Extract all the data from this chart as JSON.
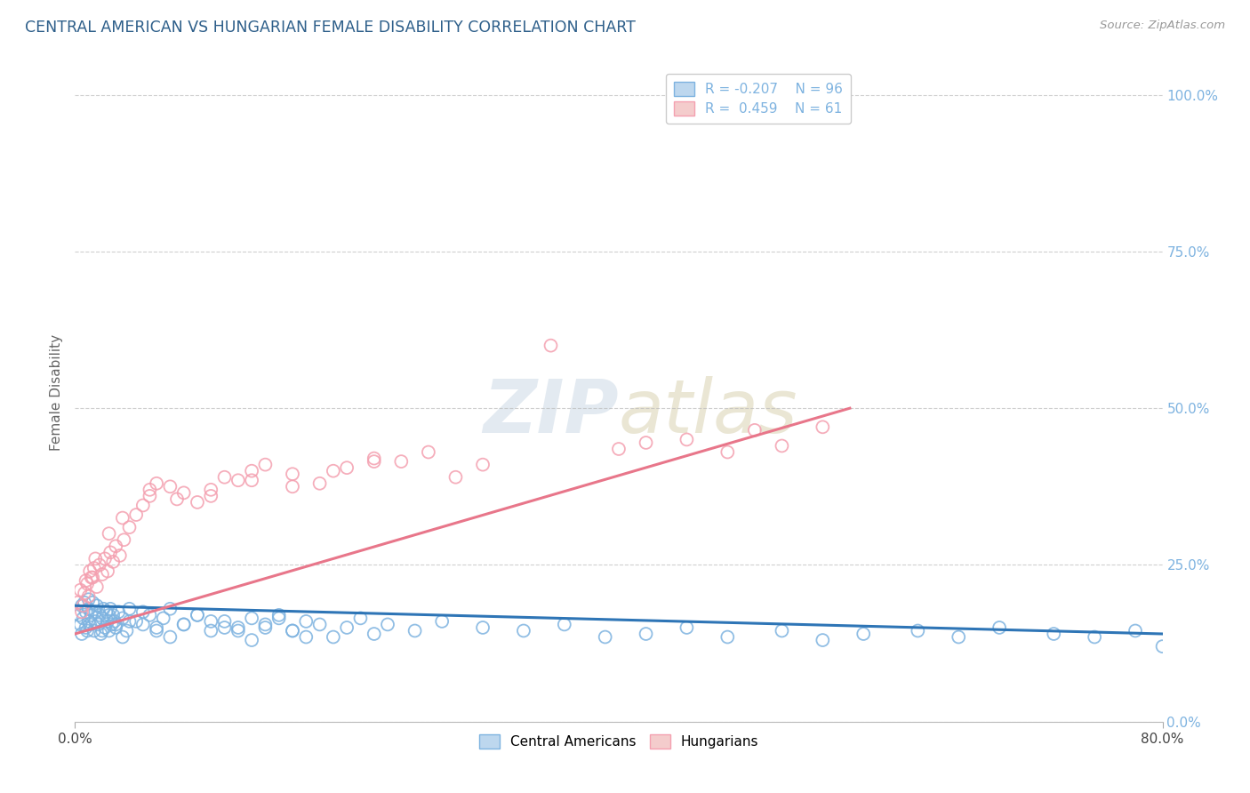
{
  "title": "CENTRAL AMERICAN VS HUNGARIAN FEMALE DISABILITY CORRELATION CHART",
  "source": "Source: ZipAtlas.com",
  "ylabel": "Female Disability",
  "y_tick_labels": [
    "0.0%",
    "25.0%",
    "50.0%",
    "75.0%",
    "100.0%"
  ],
  "y_tick_values": [
    0.0,
    25.0,
    50.0,
    75.0,
    100.0
  ],
  "xlim": [
    0.0,
    80.0
  ],
  "ylim": [
    0.0,
    105.0
  ],
  "blue_color": "#7EB3E0",
  "pink_color": "#F4A0B0",
  "blue_face": "#BDD7EE",
  "pink_face": "#F4CCCC",
  "trend_blue": "#2E75B6",
  "trend_pink": "#E8768A",
  "title_color": "#2E5F8A",
  "source_color": "#999999",
  "background_color": "#FFFFFF",
  "grid_color": "#BBBBBB",
  "ca_trend_x0": 0.0,
  "ca_trend_y0": 18.5,
  "ca_trend_x1": 80.0,
  "ca_trend_y1": 14.0,
  "hu_trend_x0": 0.0,
  "hu_trend_y0": 14.0,
  "hu_trend_x1": 57.0,
  "hu_trend_y1": 50.0,
  "ca_scatter": {
    "x": [
      0.3,
      0.4,
      0.5,
      0.5,
      0.6,
      0.7,
      0.8,
      0.8,
      0.9,
      1.0,
      1.0,
      1.1,
      1.2,
      1.3,
      1.4,
      1.5,
      1.6,
      1.7,
      1.8,
      1.9,
      2.0,
      2.1,
      2.2,
      2.3,
      2.4,
      2.5,
      2.6,
      2.7,
      2.8,
      2.9,
      3.0,
      3.2,
      3.5,
      3.8,
      4.0,
      4.5,
      5.0,
      5.5,
      6.0,
      6.5,
      7.0,
      8.0,
      9.0,
      10.0,
      11.0,
      12.0,
      13.0,
      14.0,
      15.0,
      16.0,
      17.0,
      18.0,
      19.0,
      20.0,
      21.0,
      22.0,
      23.0,
      25.0,
      27.0,
      30.0,
      33.0,
      36.0,
      39.0,
      42.0,
      45.0,
      48.0,
      52.0,
      55.0,
      58.0,
      62.0,
      65.0,
      68.0,
      72.0,
      75.0,
      78.0,
      80.0,
      1.0,
      1.5,
      2.0,
      2.5,
      3.0,
      3.5,
      4.0,
      5.0,
      6.0,
      7.0,
      8.0,
      9.0,
      10.0,
      11.0,
      12.0,
      13.0,
      14.0,
      15.0,
      16.0,
      17.0
    ],
    "y": [
      17.0,
      15.5,
      18.5,
      14.0,
      16.5,
      19.0,
      15.0,
      17.5,
      14.5,
      18.0,
      16.0,
      15.5,
      17.0,
      19.0,
      14.5,
      16.0,
      18.5,
      15.5,
      17.0,
      14.0,
      16.5,
      18.0,
      15.0,
      17.5,
      16.0,
      14.5,
      18.0,
      15.5,
      17.0,
      16.0,
      15.0,
      17.5,
      16.5,
      14.5,
      18.0,
      16.0,
      15.5,
      17.0,
      14.5,
      16.5,
      18.0,
      15.5,
      17.0,
      16.0,
      15.0,
      14.5,
      16.5,
      15.0,
      17.0,
      14.5,
      16.0,
      15.5,
      13.5,
      15.0,
      16.5,
      14.0,
      15.5,
      14.5,
      16.0,
      15.0,
      14.5,
      15.5,
      13.5,
      14.0,
      15.0,
      13.5,
      14.5,
      13.0,
      14.0,
      14.5,
      13.5,
      15.0,
      14.0,
      13.5,
      14.5,
      12.0,
      19.5,
      17.5,
      14.5,
      17.0,
      15.5,
      13.5,
      16.0,
      17.5,
      15.0,
      13.5,
      15.5,
      17.0,
      14.5,
      16.0,
      15.0,
      13.0,
      15.5,
      16.5,
      14.5,
      13.5
    ]
  },
  "hu_scatter": {
    "x": [
      0.2,
      0.4,
      0.6,
      0.8,
      1.0,
      1.2,
      1.4,
      1.6,
      1.8,
      2.0,
      2.2,
      2.4,
      2.6,
      2.8,
      3.0,
      3.3,
      3.6,
      4.0,
      4.5,
      5.0,
      5.5,
      6.0,
      7.0,
      8.0,
      9.0,
      10.0,
      11.0,
      12.0,
      13.0,
      14.0,
      16.0,
      18.0,
      20.0,
      22.0,
      24.0,
      26.0,
      28.0,
      30.0,
      35.0,
      40.0,
      42.0,
      45.0,
      48.0,
      50.0,
      52.0,
      55.0,
      0.5,
      0.7,
      0.9,
      1.1,
      1.3,
      1.5,
      2.5,
      3.5,
      5.5,
      7.5,
      10.0,
      13.0,
      16.0,
      19.0,
      22.0
    ],
    "y": [
      19.0,
      21.0,
      18.5,
      22.5,
      20.0,
      23.0,
      24.5,
      21.5,
      25.0,
      23.5,
      26.0,
      24.0,
      27.0,
      25.5,
      28.0,
      26.5,
      29.0,
      31.0,
      33.0,
      34.5,
      36.0,
      38.0,
      37.5,
      36.5,
      35.0,
      37.0,
      39.0,
      38.5,
      40.0,
      41.0,
      39.5,
      38.0,
      40.5,
      42.0,
      41.5,
      43.0,
      39.0,
      41.0,
      60.0,
      43.5,
      44.5,
      45.0,
      43.0,
      46.5,
      44.0,
      47.0,
      17.5,
      20.5,
      22.0,
      24.0,
      23.0,
      26.0,
      30.0,
      32.5,
      37.0,
      35.5,
      36.0,
      38.5,
      37.5,
      40.0,
      41.5
    ]
  }
}
